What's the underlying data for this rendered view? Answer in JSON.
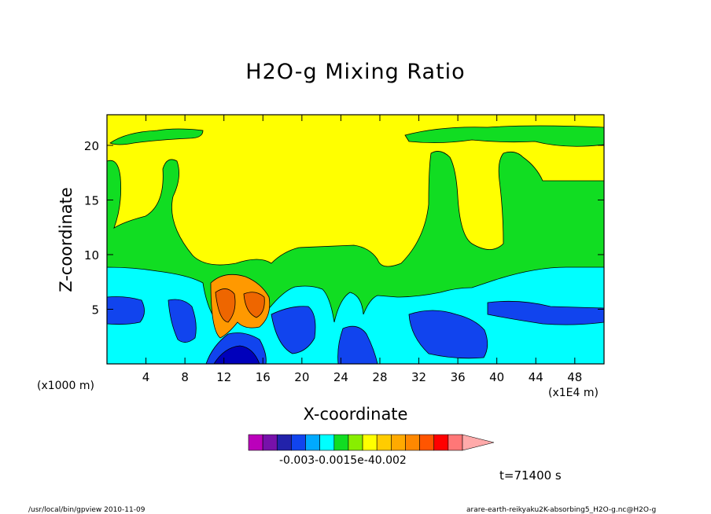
{
  "chart_data": {
    "type": "heatmap",
    "title": "H2O-g Mixing Ratio",
    "xlabel": "X-coordinate",
    "ylabel": "Z-coordinate",
    "x_unit_label": "(x1E4 m)",
    "z_unit_label": "(x1000 m)",
    "x_ticks": [
      4,
      8,
      12,
      16,
      20,
      24,
      28,
      32,
      36,
      40,
      44,
      48
    ],
    "y_ticks": [
      5,
      10,
      15,
      20
    ],
    "xlim": [
      0,
      51
    ],
    "ylim": [
      0,
      22.8
    ],
    "colorbar_tick_text": "-0.003-0.0015e-40.002",
    "time_label": "t=71400 s",
    "colors": {
      "yellow": "#ffff00",
      "green": "#11dd22",
      "cyan": "#00ffff",
      "blue": "#1144ee",
      "navy": "#0000bb",
      "orange": "#ff9900",
      "dark_orange": "#ee6600",
      "colorbar": [
        "#bb00bb",
        "#7711aa",
        "#2222aa",
        "#1144ee",
        "#00aaff",
        "#00ffff",
        "#11dd22",
        "#88ee00",
        "#ffff00",
        "#ffcc00",
        "#ffaa00",
        "#ff8800",
        "#ff5500",
        "#ff0000",
        "#ff7777",
        "#ffaaaa"
      ]
    }
  },
  "footer": {
    "left": "/usr/local/bin/gpview   2010-11-09",
    "right": "arare-earth-reikyaku2K-absorbing5_H2O-g.nc@H2O-g"
  }
}
